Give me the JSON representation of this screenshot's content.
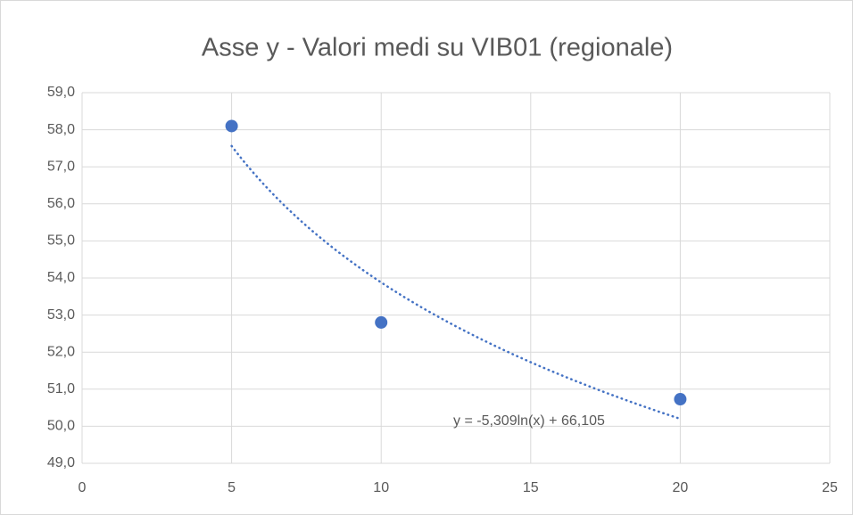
{
  "chart_data": {
    "type": "scatter",
    "title": "Asse y - Valori medi su VIB01 (regionale)",
    "series": [
      {
        "color": "#4472c4",
        "x": [
          5,
          10,
          20
        ],
        "values": [
          58.1,
          52.8,
          50.73
        ]
      }
    ],
    "trendline": {
      "type": "log",
      "coefficients": [
        -5.309,
        66.105
      ],
      "color": "#4472c4",
      "label": "y = -5,309ln(x) + 66,105"
    },
    "xlim": [
      0,
      25
    ],
    "xticks": [
      0,
      5,
      10,
      15,
      20,
      25
    ],
    "ylim": [
      49,
      59
    ],
    "yticks": [
      {
        "value": 49,
        "label": "49,0"
      },
      {
        "value": 50,
        "label": "50,0"
      },
      {
        "value": 51,
        "label": "51,0"
      },
      {
        "value": 52,
        "label": "52,0"
      },
      {
        "value": 53,
        "label": "53,0"
      },
      {
        "value": 54,
        "label": "54,0"
      },
      {
        "value": 55,
        "label": "55,0"
      },
      {
        "value": 56,
        "label": "56,0"
      },
      {
        "value": 57,
        "label": "57,0"
      },
      {
        "value": 58,
        "label": "58,0"
      },
      {
        "value": 59,
        "label": "59,0"
      }
    ],
    "grid": true
  }
}
